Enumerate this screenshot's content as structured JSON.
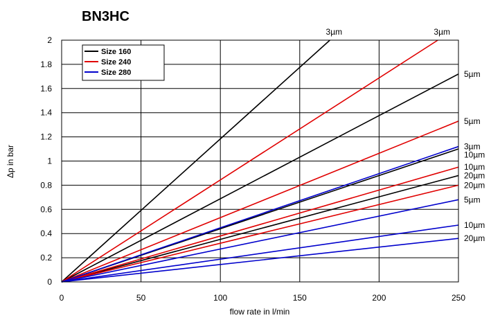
{
  "chart_data": {
    "type": "line",
    "title": "BN3HC",
    "xlabel": "flow rate in l/min",
    "ylabel": "Δp in bar",
    "xlim": [
      0,
      250
    ],
    "ylim": [
      0,
      2
    ],
    "x_ticks": [
      "0",
      "50",
      "100",
      "150",
      "200",
      "250"
    ],
    "y_ticks": [
      "0",
      "0.2",
      "0.4",
      "0.6",
      "0.8",
      "1",
      "1.2",
      "1.4",
      "1.6",
      "1.8",
      "2"
    ],
    "grid": true,
    "legend_position": "top-left",
    "legend": [
      {
        "label": "Size 160",
        "color": "#000000"
      },
      {
        "label": "Size 240",
        "color": "#e00000"
      },
      {
        "label": "Size 280",
        "color": "#0000cc"
      }
    ],
    "series": [
      {
        "group": "Size 160",
        "color": "#000000",
        "label": "3µm",
        "x": [
          0,
          169
        ],
        "y": [
          0,
          2.0
        ]
      },
      {
        "group": "Size 160",
        "color": "#000000",
        "label": "5µm",
        "x": [
          0,
          250
        ],
        "y": [
          0,
          1.72
        ]
      },
      {
        "group": "Size 160",
        "color": "#000000",
        "label": "10µm",
        "x": [
          0,
          250
        ],
        "y": [
          0,
          1.1
        ]
      },
      {
        "group": "Size 160",
        "color": "#000000",
        "label": "20µm",
        "x": [
          0,
          250
        ],
        "y": [
          0,
          0.88
        ]
      },
      {
        "group": "Size 240",
        "color": "#e00000",
        "label": "3µm",
        "x": [
          0,
          237
        ],
        "y": [
          0,
          2.0
        ]
      },
      {
        "group": "Size 240",
        "color": "#e00000",
        "label": "5µm",
        "x": [
          0,
          250
        ],
        "y": [
          0,
          1.33
        ]
      },
      {
        "group": "Size 240",
        "color": "#e00000",
        "label": "10µm",
        "x": [
          0,
          250
        ],
        "y": [
          0,
          0.95
        ]
      },
      {
        "group": "Size 240",
        "color": "#e00000",
        "label": "20µm",
        "x": [
          0,
          250
        ],
        "y": [
          0,
          0.8
        ]
      },
      {
        "group": "Size 280",
        "color": "#0000cc",
        "label": "3µm",
        "x": [
          0,
          250
        ],
        "y": [
          0,
          1.12
        ]
      },
      {
        "group": "Size 280",
        "color": "#0000cc",
        "label": "5µm",
        "x": [
          0,
          250
        ],
        "y": [
          0,
          0.68
        ]
      },
      {
        "group": "Size 280",
        "color": "#0000cc",
        "label": "10µm",
        "x": [
          0,
          250
        ],
        "y": [
          0,
          0.47
        ]
      },
      {
        "group": "Size 280",
        "color": "#0000cc",
        "label": "20µm",
        "x": [
          0,
          250
        ],
        "y": [
          0,
          0.36
        ]
      }
    ]
  }
}
